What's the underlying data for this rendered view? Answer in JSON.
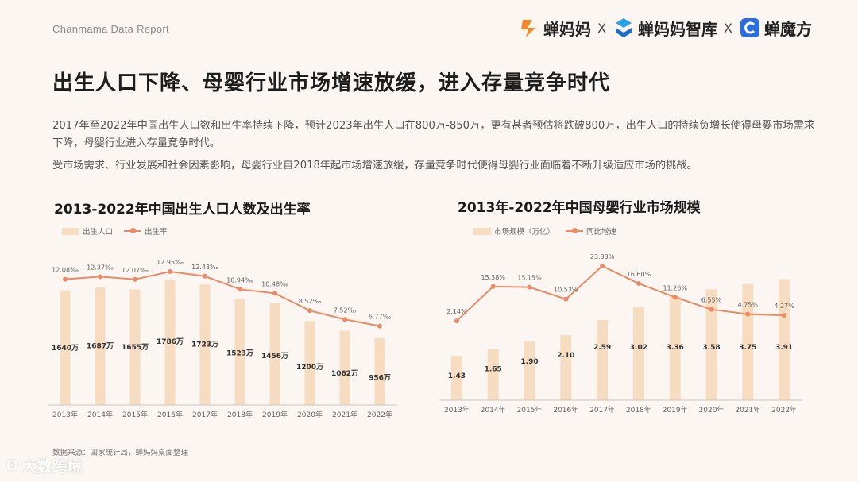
{
  "header": {
    "report_label": "Chanmama Data Report",
    "brands": [
      "蝉妈妈",
      "蝉妈妈智库",
      "蝉魔方"
    ],
    "separator": "X"
  },
  "title": "出生人口下降、母婴行业市场增速放缓，进入存量竞争时代",
  "paragraphs": [
    "2017年至2022年中国出生人口数和出生率持续下降，预计2023年出生人口在800万-850万，更有甚者预估将跌破800万，出生人口的持续负增长使得母婴市场需求下降，母婴行业进入存量竞争时代。",
    "受市场需求、行业发展和社会因素影响，母婴行业自2018年起市场增速放缓，存量竞争时代使得母婴行业面临着不断升级适应市场的挑战。"
  ],
  "chart_data": [
    {
      "type": "bar",
      "title": "2013-2022年中国出生人口人数及出生率",
      "categories": [
        "2013年",
        "2014年",
        "2015年",
        "2016年",
        "2017年",
        "2018年",
        "2019年",
        "2020年",
        "2021年",
        "2022年"
      ],
      "series": [
        {
          "name": "出生人口",
          "type": "bar",
          "values": [
            1640,
            1687,
            1655,
            1786,
            1723,
            1523,
            1456,
            1200,
            1062,
            956
          ],
          "labels": [
            "1640万",
            "1687万",
            "1655万",
            "1786万",
            "1723万",
            "1523万",
            "1456万",
            "1200万",
            "1062万",
            "956万"
          ]
        },
        {
          "name": "出生率",
          "type": "line",
          "values": [
            12.08,
            12.37,
            12.07,
            12.95,
            12.43,
            10.94,
            10.48,
            8.52,
            7.52,
            6.77
          ],
          "labels": [
            "12.08‰",
            "12.37‰",
            "12.07‰",
            "12.95‰",
            "12.43‰",
            "10.94‰",
            "10.48‰",
            "8.52‰",
            "7.52‰",
            "6.77‰"
          ]
        }
      ],
      "bar_color": "#f6dcc1",
      "line_color": "#ea8a66"
    },
    {
      "type": "bar",
      "title": "2013年-2022年中国母婴行业市场规模",
      "categories": [
        "2013年",
        "2014年",
        "2015年",
        "2016年",
        "2017年",
        "2018年",
        "2019年",
        "2020年",
        "2021年",
        "2022年"
      ],
      "series": [
        {
          "name": "市场规模（万亿）",
          "type": "bar",
          "values": [
            1.43,
            1.65,
            1.9,
            2.1,
            2.59,
            3.02,
            3.36,
            3.58,
            3.75,
            3.91
          ],
          "labels": [
            "1.43",
            "1.65",
            "1.90",
            "2.10",
            "2.59",
            "3.02",
            "3.36",
            "3.58",
            "3.75",
            "3.91"
          ]
        },
        {
          "name": "同比增速",
          "type": "line",
          "values": [
            2.14,
            15.38,
            15.15,
            10.53,
            23.33,
            16.6,
            11.26,
            6.55,
            4.75,
            4.27
          ],
          "labels": [
            "2.14%",
            "15.38%",
            "15.15%",
            "10.53%",
            "23.33%",
            "16.60%",
            "11.26%",
            "6.55%",
            "4.75%",
            "4.27%"
          ]
        }
      ],
      "bar_color": "#f6dcc1",
      "line_color": "#ea8a66"
    }
  ],
  "source": "数据来源：国家统计局，蝉妈妈桌面整理",
  "watermark": "大数跨境"
}
